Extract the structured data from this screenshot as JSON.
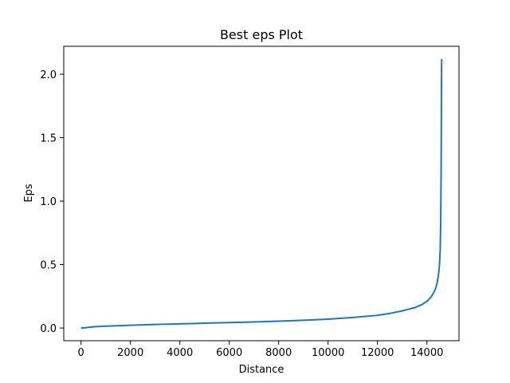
{
  "chart_data": {
    "type": "line",
    "title": "Best eps Plot",
    "xlabel": "Distance",
    "ylabel": "Eps",
    "xlim": [
      -700,
      15300
    ],
    "ylim": [
      -0.1,
      2.22
    ],
    "xticks": [
      0,
      2000,
      4000,
      6000,
      8000,
      10000,
      12000,
      14000
    ],
    "xtick_labels": [
      "0",
      "2000",
      "4000",
      "6000",
      "8000",
      "10000",
      "12000",
      "14000"
    ],
    "yticks": [
      0.0,
      0.5,
      1.0,
      1.5,
      2.0
    ],
    "ytick_labels": [
      "0.0",
      "0.5",
      "1.0",
      "1.5",
      "2.0"
    ],
    "grid": false,
    "series": [
      {
        "color": "#1f77b4",
        "x": [
          0,
          200,
          500,
          1000,
          2000,
          3000,
          4000,
          5000,
          6000,
          7000,
          8000,
          9000,
          10000,
          11000,
          12000,
          12500,
          13000,
          13500,
          13800,
          14000,
          14150,
          14250,
          14350,
          14420,
          14470,
          14510,
          14540,
          14560,
          14575,
          14585,
          14590,
          14595,
          14600
        ],
        "y": [
          0.0,
          0.003,
          0.01,
          0.015,
          0.022,
          0.028,
          0.033,
          0.038,
          0.043,
          0.048,
          0.054,
          0.061,
          0.07,
          0.083,
          0.1,
          0.115,
          0.135,
          0.16,
          0.185,
          0.21,
          0.24,
          0.27,
          0.31,
          0.36,
          0.42,
          0.5,
          0.62,
          0.85,
          1.2,
          1.6,
          1.9,
          2.05,
          2.12
        ]
      }
    ]
  }
}
